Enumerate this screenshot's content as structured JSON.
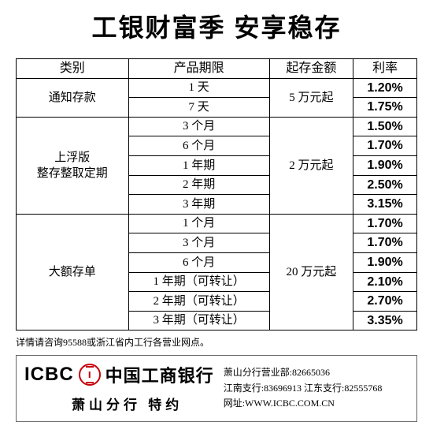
{
  "title": "工银财富季  安享稳存",
  "columns": [
    "类别",
    "产品期限",
    "起存金额",
    "利率"
  ],
  "groups": [
    {
      "category": "通知存款",
      "min_amount": "5 万元起",
      "rows": [
        {
          "term": "1 天",
          "rate": "1.20%"
        },
        {
          "term": "7 天",
          "rate": "1.75%"
        }
      ]
    },
    {
      "category": "上浮版\n整存整取定期",
      "min_amount": "2 万元起",
      "rows": [
        {
          "term": "3 个月",
          "rate": "1.50%"
        },
        {
          "term": "6 个月",
          "rate": "1.70%"
        },
        {
          "term": "1 年期",
          "rate": "1.90%"
        },
        {
          "term": "2 年期",
          "rate": "2.50%"
        },
        {
          "term": "3 年期",
          "rate": "3.15%"
        }
      ]
    },
    {
      "category": "大额存单",
      "min_amount": "20 万元起",
      "rows": [
        {
          "term": "1 个月",
          "rate": "1.70%"
        },
        {
          "term": "3 个月",
          "rate": "1.70%"
        },
        {
          "term": "6 个月",
          "rate": "1.90%"
        },
        {
          "term": "1 年期（可转让）",
          "rate": "2.10%"
        },
        {
          "term": "2 年期（可转让）",
          "rate": "2.70%"
        },
        {
          "term": "3 年期（可转让）",
          "rate": "3.35%"
        }
      ]
    }
  ],
  "note": "详情请咨询95588或浙江省内工行各营业网点。",
  "footer": {
    "logo_text": "ICBC",
    "bank_cn": "中国工商银行",
    "branch": "萧山分行  特约",
    "contacts_line1": "萧山分行营业部:82665036",
    "contacts_line2": "江南支行:83696913  江东支行:82555768",
    "website": "网址:WWW.ICBC.COM.CN"
  },
  "style": {
    "title_fontsize": 32,
    "table_fontsize": 15,
    "rate_fontsize": 16,
    "note_fontsize": 12,
    "border_color": "#000000",
    "logo_color": "#c7000b",
    "background": "#ffffff"
  }
}
